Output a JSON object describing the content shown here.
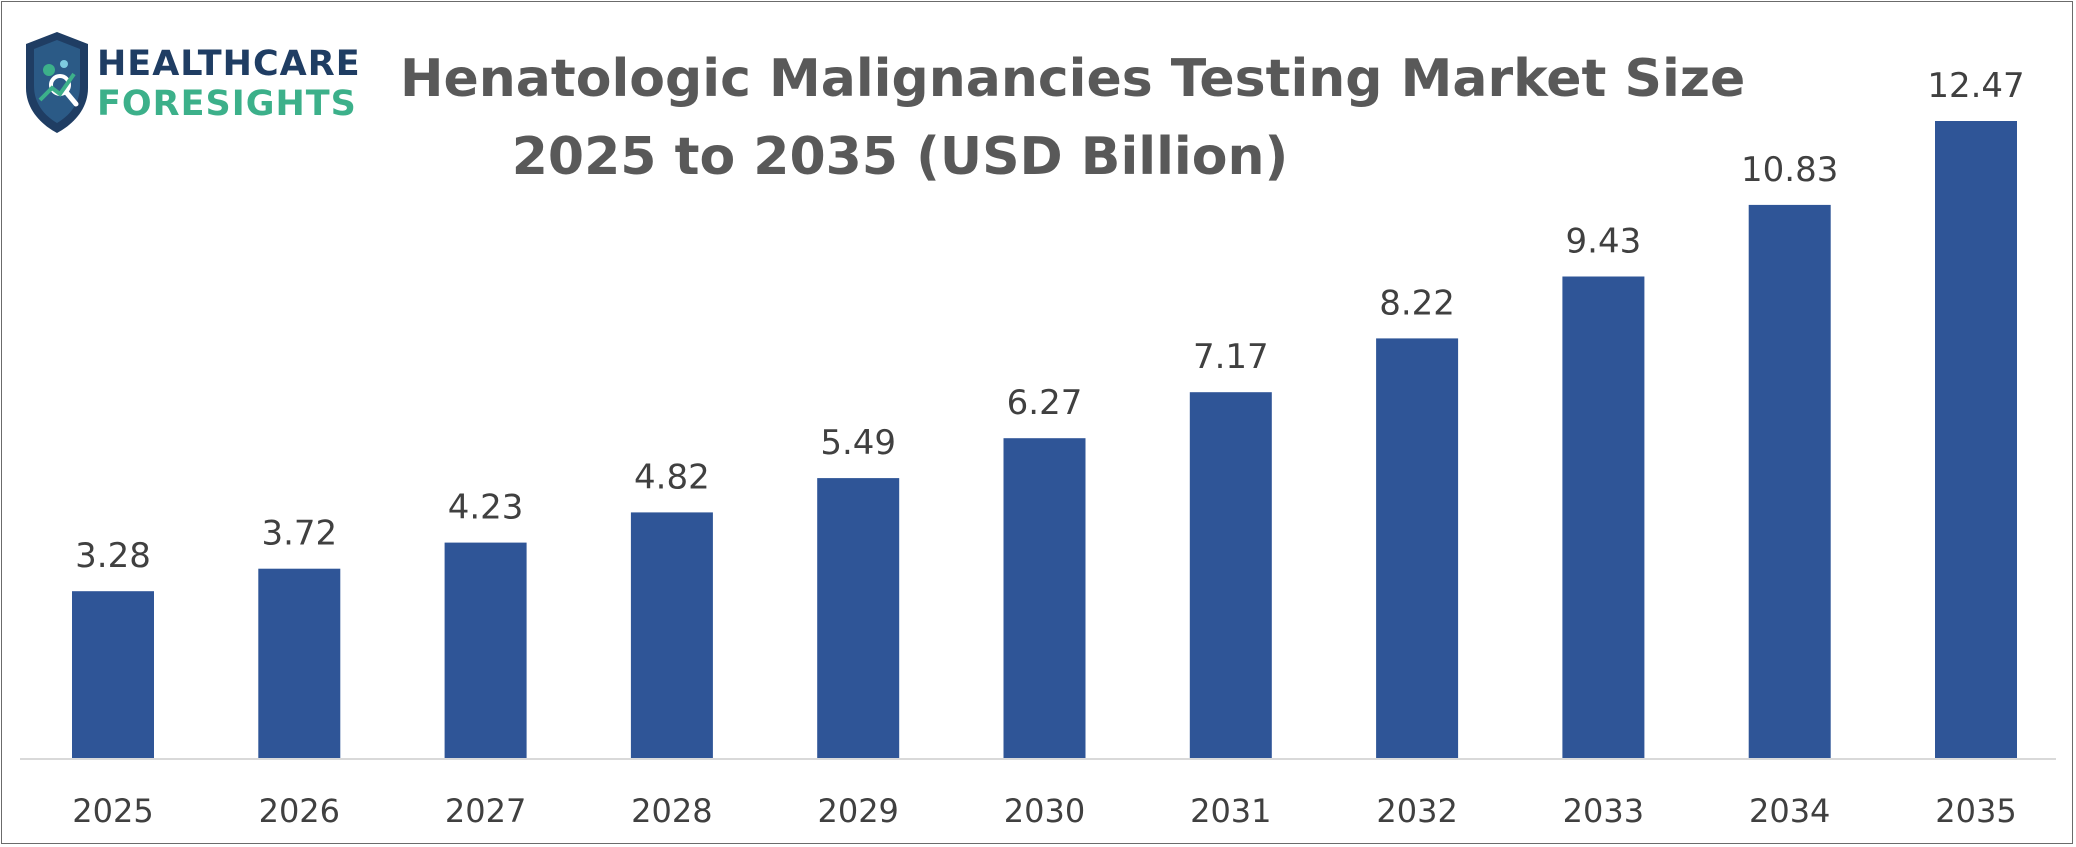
{
  "brand": {
    "name_line1": "HEALTHCARE",
    "name_line2": "FORESIGHTS",
    "colors": {
      "navy": "#1f3d63",
      "green": "#3cb08a"
    }
  },
  "chart_data": {
    "type": "bar",
    "title_line1": "Henatologic Malignancies Testing Market Size",
    "title_line2": "2025 to 2035 (USD Billion)",
    "xlabel": "",
    "ylabel": "",
    "categories": [
      "2025",
      "2026",
      "2027",
      "2028",
      "2029",
      "2030",
      "2031",
      "2032",
      "2033",
      "2034",
      "2035"
    ],
    "values": [
      3.28,
      3.72,
      4.23,
      4.82,
      5.49,
      6.27,
      7.17,
      8.22,
      9.43,
      10.83,
      12.47
    ],
    "data_labels": [
      "3.28",
      "3.72",
      "4.23",
      "4.82",
      "5.49",
      "6.27",
      "7.17",
      "8.22",
      "9.43",
      "10.83",
      "12.47"
    ],
    "ylim": [
      0,
      12.47
    ],
    "grid": false,
    "legend": "none",
    "bar_color": "#2f5597",
    "axis_color": "#d9d9d9"
  }
}
